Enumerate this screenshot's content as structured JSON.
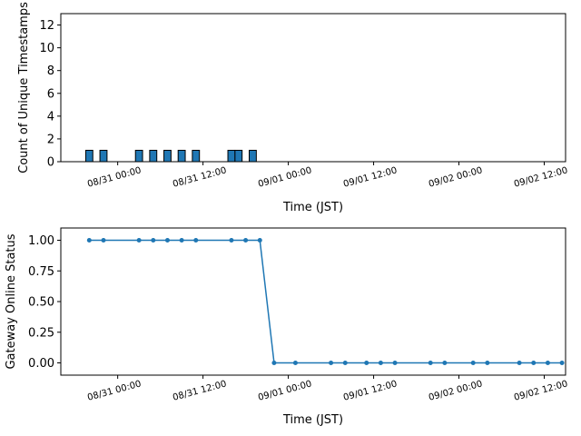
{
  "chart_data": [
    {
      "type": "bar",
      "xlabel": "Time (JST)",
      "ylabel": "Count of Unique Timestamps",
      "ylim": [
        0,
        13
      ],
      "yticks": [
        0,
        2,
        4,
        6,
        8,
        10,
        12
      ],
      "xlim": [
        "08/30 16:00",
        "09/02 15:00"
      ],
      "xticks": [
        "08/31 00:00",
        "08/31 12:00",
        "09/01 00:00",
        "09/01 12:00",
        "09/02 00:00",
        "09/02 12:00"
      ],
      "bar_width_hours": 1,
      "color": "#1f77b4",
      "edge_color": "#000000",
      "series": [
        {
          "x": [
            "08/30 20:00",
            "08/30 22:00",
            "08/31 03:00",
            "08/31 05:00",
            "08/31 07:00",
            "08/31 09:00",
            "08/31 11:00",
            "08/31 16:00",
            "08/31 17:00",
            "08/31 19:00"
          ],
          "values": [
            1,
            1,
            1,
            1,
            1,
            1,
            1,
            1,
            1,
            1
          ]
        }
      ],
      "grid": false
    },
    {
      "type": "line",
      "xlabel": "Time (JST)",
      "ylabel": "Gateway Online Status",
      "ylim": [
        -0.1,
        1.1
      ],
      "yticks": [
        0.0,
        0.25,
        0.5,
        0.75,
        1.0
      ],
      "ytick_labels": [
        "0.00",
        "0.25",
        "0.50",
        "0.75",
        "1.00"
      ],
      "xlim": [
        "08/30 16:00",
        "09/02 15:00"
      ],
      "xticks": [
        "08/31 00:00",
        "08/31 12:00",
        "09/01 00:00",
        "09/01 12:00",
        "09/02 00:00",
        "09/02 12:00"
      ],
      "color": "#1f77b4",
      "marker": "circle",
      "series": [
        {
          "x": [
            "08/30 20:00",
            "08/30 22:00",
            "08/31 03:00",
            "08/31 05:00",
            "08/31 07:00",
            "08/31 09:00",
            "08/31 11:00",
            "08/31 16:00",
            "08/31 18:00",
            "08/31 20:00",
            "08/31 22:00",
            "09/01 01:00",
            "09/01 06:00",
            "09/01 08:00",
            "09/01 11:00",
            "09/01 13:00",
            "09/01 15:00",
            "09/01 20:00",
            "09/01 22:00",
            "09/02 02:00",
            "09/02 04:00",
            "09/02 08:30",
            "09/02 10:30",
            "09/02 12:30",
            "09/02 14:30"
          ],
          "values": [
            1,
            1,
            1,
            1,
            1,
            1,
            1,
            1,
            1,
            1,
            0,
            0,
            0,
            0,
            0,
            0,
            0,
            0,
            0,
            0,
            0,
            0,
            0,
            0,
            0
          ]
        }
      ],
      "grid": false
    }
  ]
}
